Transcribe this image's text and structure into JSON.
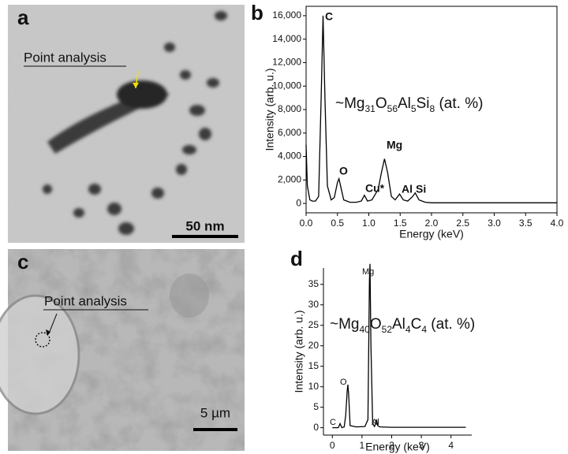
{
  "panels": {
    "a": {
      "label": "a",
      "note": "Point analysis",
      "scale": "50 nm"
    },
    "c": {
      "label": "c",
      "note": "Point analysis",
      "scale": "5 µm"
    }
  },
  "chart_data": [
    {
      "type": "line",
      "panel": "b",
      "x_label": "Energy (keV)",
      "y_label": "Intensity (arb. u.)",
      "annotation": "~Mg31O56Al5Si8 (at. %)",
      "peak_labels": [
        "C",
        "O",
        "Cu*",
        "Mg",
        "Al",
        "Si"
      ],
      "x": [
        0,
        0.02,
        0.06,
        0.1,
        0.15,
        0.2,
        0.24,
        0.27,
        0.3,
        0.34,
        0.4,
        0.45,
        0.5,
        0.525,
        0.55,
        0.6,
        0.7,
        0.8,
        0.88,
        0.93,
        0.98,
        1.05,
        1.15,
        1.2,
        1.25,
        1.3,
        1.36,
        1.42,
        1.49,
        1.55,
        1.62,
        1.7,
        1.74,
        1.8,
        1.9,
        2.0,
        2.5,
        3.0,
        3.5,
        4.0
      ],
      "series": [
        {
          "color": "#000000",
          "values": [
            5000,
            1500,
            300,
            200,
            200,
            600,
            9000,
            16000,
            9000,
            1500,
            300,
            500,
            1800,
            2100,
            1500,
            300,
            100,
            100,
            200,
            700,
            200,
            300,
            1200,
            2600,
            3800,
            2600,
            600,
            300,
            800,
            300,
            200,
            600,
            900,
            300,
            100,
            50,
            50,
            50,
            50,
            50
          ]
        }
      ],
      "xlim": [
        0,
        4.0
      ],
      "xticks": [
        {
          "value": 0,
          "label": "0.0"
        },
        {
          "value": 0.5,
          "label": "0.5"
        },
        {
          "value": 1,
          "label": "1.0"
        },
        {
          "value": 1.5,
          "label": "1.5"
        },
        {
          "value": 2,
          "label": "2.0"
        },
        {
          "value": 2.5,
          "label": "2.5"
        },
        {
          "value": 3,
          "label": "3.0"
        },
        {
          "value": 3.5,
          "label": "3.5"
        },
        {
          "value": 4,
          "label": "4.0"
        }
      ],
      "ylim": [
        -800,
        16800
      ],
      "yticks": [
        0,
        {
          "value": 2000,
          "label": "2,000"
        },
        {
          "value": 4000,
          "label": "4,000"
        },
        {
          "value": 6000,
          "label": "6,000"
        },
        {
          "value": 8000,
          "label": "8,000"
        },
        {
          "value": 10000,
          "label": "10,000"
        },
        {
          "value": 12000,
          "label": "12,000"
        },
        {
          "value": 14000,
          "label": "14,000"
        },
        {
          "value": 16000,
          "label": "16,000"
        }
      ]
    },
    {
      "type": "line",
      "panel": "d",
      "x_label": "Energy (keV)",
      "y_label": "Intensity (arb. u.)",
      "annotation": "~Mg40O52Al4C4 (at. %)",
      "peak_labels": [
        "C",
        "O",
        "Mg",
        "Al"
      ],
      "x": [
        0,
        0.1,
        0.2,
        0.26,
        0.32,
        0.4,
        0.45,
        0.5,
        0.525,
        0.55,
        0.6,
        0.8,
        1.1,
        1.2,
        1.25,
        1.27,
        1.3,
        1.36,
        1.42,
        1.46,
        1.49,
        1.53,
        1.6,
        2.0,
        3.0,
        4.0,
        4.5
      ],
      "series": [
        {
          "color": "#000000",
          "values": [
            0,
            0,
            0,
            1,
            0,
            0.2,
            3,
            9,
            10.5,
            8,
            0.5,
            0.2,
            0.3,
            2,
            36,
            40,
            20,
            1,
            0.3,
            1,
            2,
            0.5,
            0.2,
            0.1,
            0.1,
            0.1,
            0.1
          ]
        }
      ],
      "xlim": [
        -0.3,
        4.7
      ],
      "xticks": [
        0,
        1,
        2,
        3,
        4
      ],
      "ylim": [
        -1.8,
        39
      ],
      "yticks": [
        0,
        5,
        10,
        15,
        20,
        25,
        30,
        35
      ]
    }
  ]
}
